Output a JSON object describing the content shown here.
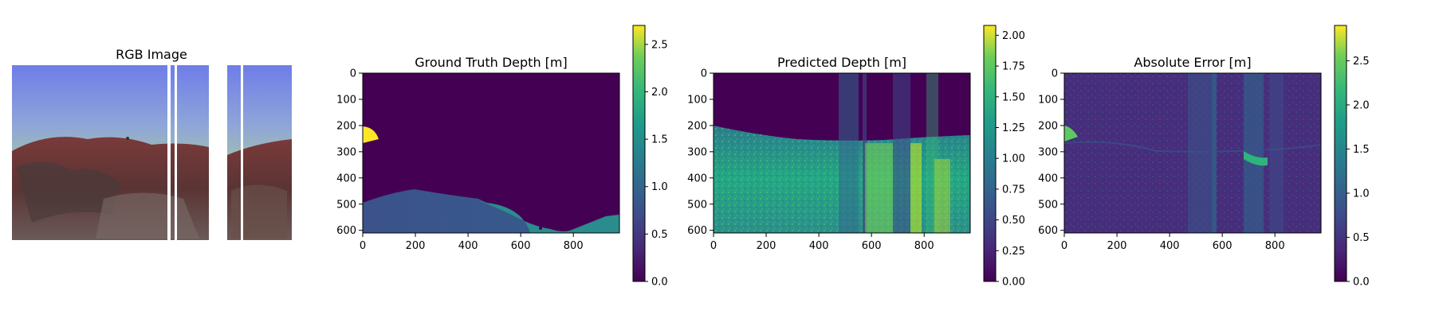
{
  "chart_data": [
    {
      "type": "image",
      "title": "RGB Image"
    },
    {
      "type": "heatmap",
      "title": "Ground Truth Depth [m]",
      "colormap": "viridis",
      "xlim": [
        0,
        975
      ],
      "ylim": [
        610,
        0
      ],
      "x_ticks": [
        0,
        200,
        400,
        600,
        800
      ],
      "y_ticks": [
        0,
        100,
        200,
        300,
        400,
        500,
        600
      ],
      "colorbar": {
        "vmin": 0,
        "vmax": 2.7,
        "ticks": [
          "0.0",
          "0.5",
          "1.0",
          "1.5",
          "2.0",
          "2.5"
        ],
        "tick_values": [
          0,
          0.5,
          1,
          1.5,
          2,
          2.5
        ]
      }
    },
    {
      "type": "heatmap",
      "title": "Predicted Depth [m]",
      "colormap": "viridis",
      "xlim": [
        0,
        975
      ],
      "ylim": [
        610,
        0
      ],
      "x_ticks": [
        0,
        200,
        400,
        600,
        800
      ],
      "y_ticks": [
        0,
        100,
        200,
        300,
        400,
        500,
        600
      ],
      "colorbar": {
        "vmin": 0,
        "vmax": 2.08,
        "ticks": [
          "0.00",
          "0.25",
          "0.50",
          "0.75",
          "1.00",
          "1.25",
          "1.50",
          "1.75",
          "2.00"
        ],
        "tick_values": [
          0,
          0.25,
          0.5,
          0.75,
          1,
          1.25,
          1.5,
          1.75,
          2
        ]
      }
    },
    {
      "type": "heatmap",
      "title": "Absolute Error [m]",
      "colormap": "viridis",
      "xlim": [
        0,
        975
      ],
      "ylim": [
        610,
        0
      ],
      "x_ticks": [
        0,
        200,
        400,
        600,
        800
      ],
      "y_ticks": [
        0,
        100,
        200,
        300,
        400,
        500,
        600
      ],
      "colorbar": {
        "vmin": 0,
        "vmax": 2.9,
        "ticks": [
          "0.0",
          "0.5",
          "1.0",
          "1.5",
          "2.0",
          "2.5"
        ],
        "tick_values": [
          0,
          0.5,
          1,
          1.5,
          2,
          2.5
        ]
      }
    }
  ],
  "colors": {
    "viridis_low": "#440154",
    "viridis_mid": "#21918c",
    "viridis_high": "#fde725"
  }
}
